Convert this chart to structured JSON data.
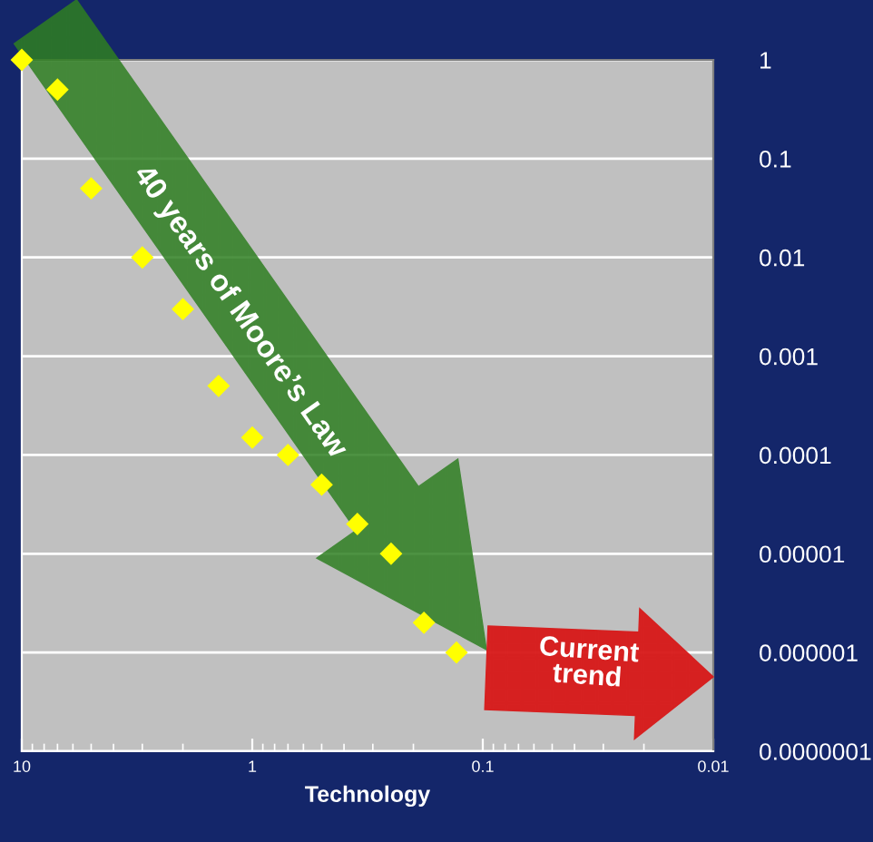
{
  "chart_data": {
    "type": "scatter",
    "xlabel": "Technology",
    "x": [
      10,
      7,
      5,
      3,
      2,
      1.4,
      1,
      0.7,
      0.5,
      0.35,
      0.25,
      0.18,
      0.13
    ],
    "values": [
      1,
      0.5,
      0.05,
      0.01,
      0.003,
      0.0005,
      0.00015,
      0.0001,
      5e-05,
      2e-05,
      1e-05,
      2e-06,
      1e-06
    ],
    "color": "#ffff00",
    "marker": "diamond",
    "log": "xy",
    "xlim": [
      10,
      0.01
    ],
    "xticks": [
      10,
      1,
      0.1,
      0.01
    ],
    "ylim": [
      1e-07,
      1
    ],
    "yticks": [
      1,
      0.1,
      0.01,
      0.001,
      0.0001,
      {
        "value": 1e-05,
        "label": "0.00001"
      },
      {
        "value": 1e-06,
        "label": "0.000001"
      },
      {
        "value": 1e-07,
        "label": "0.0000001"
      }
    ],
    "grid": "y",
    "legend": false,
    "annotations": [
      "40 years of Moore’s Law",
      "Current\ntrend"
    ]
  }
}
